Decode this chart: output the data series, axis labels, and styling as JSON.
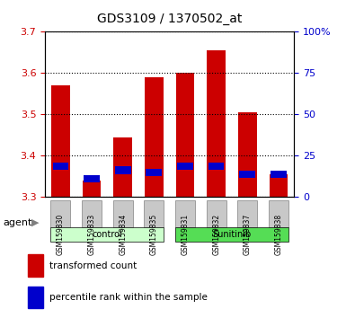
{
  "title": "GDS3109 / 1370502_at",
  "samples": [
    "GSM159830",
    "GSM159833",
    "GSM159834",
    "GSM159835",
    "GSM159831",
    "GSM159832",
    "GSM159837",
    "GSM159838"
  ],
  "groups": [
    "control",
    "control",
    "control",
    "control",
    "Sunitinib",
    "Sunitinib",
    "Sunitinib",
    "Sunitinib"
  ],
  "group_labels": [
    "control",
    "Sunitinib"
  ],
  "group_colors": [
    "#b3ffb3",
    "#66ff66"
  ],
  "bar_bottom": 3.3,
  "transformed_counts": [
    3.57,
    3.34,
    3.445,
    3.59,
    3.6,
    3.655,
    3.505,
    3.355
  ],
  "percentile_values": [
    3.375,
    3.345,
    3.365,
    3.36,
    3.375,
    3.375,
    3.355,
    3.355
  ],
  "ylim_left": [
    3.3,
    3.7
  ],
  "yticks_left": [
    3.3,
    3.4,
    3.5,
    3.6,
    3.7
  ],
  "ylim_right": [
    0,
    100
  ],
  "yticks_right": [
    0,
    25,
    50,
    75,
    100
  ],
  "ytick_labels_right": [
    "0",
    "25",
    "50",
    "75",
    "100%"
  ],
  "bar_color": "#cc0000",
  "percentile_color": "#0000cc",
  "bar_width": 0.6,
  "agent_label": "agent",
  "legend_items": [
    {
      "label": "transformed count",
      "color": "#cc0000"
    },
    {
      "label": "percentile rank within the sample",
      "color": "#0000cc"
    }
  ],
  "left_tick_color": "#cc0000",
  "right_tick_color": "#0000cc",
  "grid_color": "#000000",
  "bg_color": "#ffffff",
  "plot_bg_color": "#ffffff",
  "xticklabel_bg": "#c8c8c8"
}
